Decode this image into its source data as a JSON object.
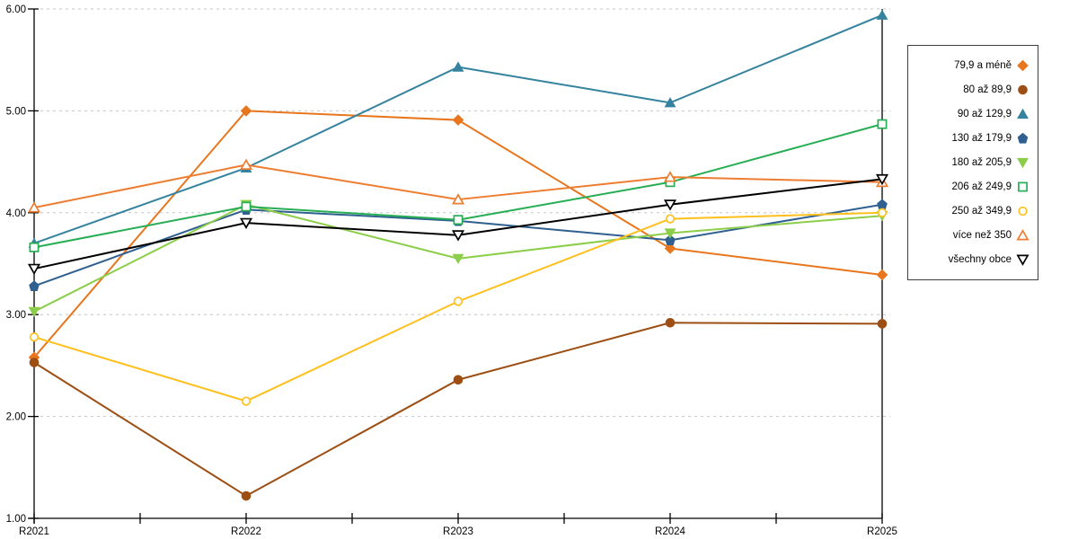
{
  "chart_data": {
    "type": "line",
    "title": "",
    "xlabel": "",
    "ylabel": "",
    "x_categories": [
      "R2021",
      "R2022",
      "R2023",
      "R2024",
      "R2025"
    ],
    "ylim": [
      1.0,
      6.0
    ],
    "y_tick_step": 1.0,
    "y_tick_labels": [
      "1.00",
      "2.00",
      "3.00",
      "4.00",
      "5.00",
      "6.00"
    ],
    "grid": "horizontal dashed",
    "legend_position": "right",
    "minor_x_ticks_between_categories": true,
    "series": [
      {
        "name": "79,9 a méně",
        "color": "#E8761E",
        "marker": "diamond",
        "marker_fill": "filled",
        "values": [
          2.58,
          5.0,
          4.91,
          3.65,
          3.39
        ]
      },
      {
        "name": "80 až 89,9",
        "color": "#9C4E13",
        "marker": "circle",
        "marker_fill": "filled",
        "values": [
          2.53,
          1.22,
          2.36,
          2.92,
          2.91
        ]
      },
      {
        "name": "90 až 129,9",
        "color": "#35839E",
        "marker": "triangle-up",
        "marker_fill": "filled",
        "values": [
          3.7,
          4.44,
          5.43,
          5.08,
          5.94
        ]
      },
      {
        "name": "130 až 179,9",
        "color": "#2F608F",
        "marker": "pentagon",
        "marker_fill": "filled",
        "values": [
          3.28,
          4.03,
          3.92,
          3.73,
          4.08
        ]
      },
      {
        "name": "180 až 205,9",
        "color": "#8CCE4A",
        "marker": "triangle-down",
        "marker_fill": "filled",
        "values": [
          3.03,
          4.08,
          3.55,
          3.8,
          3.97
        ]
      },
      {
        "name": "206 až 249,9",
        "color": "#27AE54",
        "marker": "square",
        "marker_fill": "open",
        "values": [
          3.66,
          4.06,
          3.93,
          4.3,
          4.87
        ]
      },
      {
        "name": "250 až 349,9",
        "color": "#FFC01E",
        "marker": "circle",
        "marker_fill": "open",
        "values": [
          2.78,
          2.15,
          3.13,
          3.94,
          4.0
        ]
      },
      {
        "name": "více než 350",
        "color": "#ED7D31",
        "marker": "triangle-up",
        "marker_fill": "open",
        "values": [
          4.05,
          4.47,
          4.13,
          4.35,
          4.3
        ]
      },
      {
        "name": "všechny obce",
        "color": "#000000",
        "marker": "triangle-down",
        "marker_fill": "open",
        "values": [
          3.45,
          3.9,
          3.78,
          4.08,
          4.33
        ]
      }
    ],
    "style": {
      "grid_color": "#C6C6C6",
      "axis_color": "#000000",
      "tick_label_color": "#000000"
    }
  }
}
